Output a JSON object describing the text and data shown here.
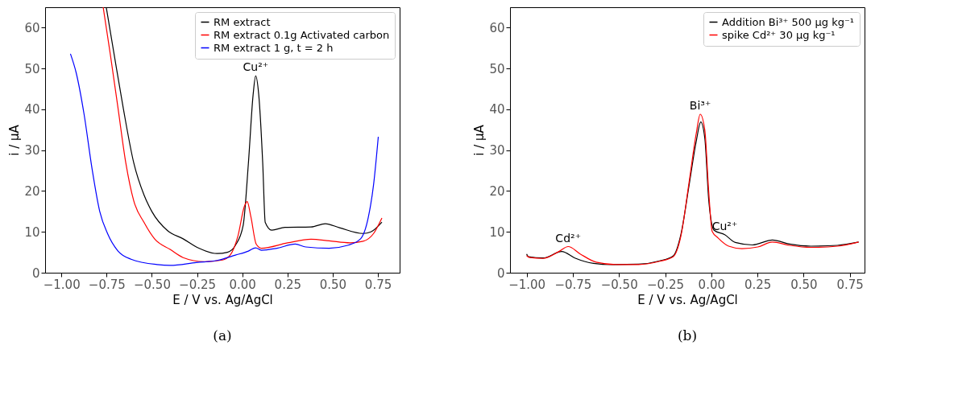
{
  "chart_data": [
    {
      "type": "line",
      "xlabel": "E / V vs. Ag/AgCl",
      "ylabel": "i / μA",
      "xlim": [
        -1.09,
        0.87
      ],
      "ylim": [
        0,
        65
      ],
      "xticks": [
        {
          "value": -1.0,
          "label": "−1.00"
        },
        {
          "value": -0.75,
          "label": "−0.75"
        },
        {
          "value": -0.5,
          "label": "−0.50"
        },
        {
          "value": -0.25,
          "label": "−0.25"
        },
        {
          "value": 0,
          "label": "0.00"
        },
        {
          "value": 0.25,
          "label": "0.25"
        },
        {
          "value": 0.5,
          "label": "0.50"
        },
        {
          "value": 0.75,
          "label": "0.75"
        }
      ],
      "yticks": [
        0,
        10,
        20,
        30,
        40,
        50,
        60
      ],
      "grid": false,
      "legend": "top right",
      "marker": "none",
      "line_style": "solid",
      "series": [
        {
          "name": "RM extract",
          "color": "#000000",
          "x": [
            -0.752,
            -0.709,
            -0.658,
            -0.6,
            -0.543,
            -0.5,
            -0.413,
            -0.327,
            -0.24,
            -0.139,
            -0.082,
            -0.038,
            0.005,
            0.034,
            0.06,
            0.074,
            0.091,
            0.113,
            0.127,
            0.163,
            0.236,
            0.38,
            0.459,
            0.538,
            0.668,
            0.711,
            0.772
          ],
          "values": [
            65,
            53.6,
            40.3,
            26.9,
            19.0,
            15.0,
            10.3,
            8.3,
            6.0,
            4.7,
            5.0,
            6.7,
            11.6,
            26.9,
            43.6,
            48.2,
            43.6,
            26.9,
            12.3,
            10.4,
            11.1,
            11.2,
            12.0,
            11.0,
            9.6,
            10.0,
            12.4
          ]
        },
        {
          "name": "RM extract 0.1g Activated carbon",
          "color": "#ff0000",
          "x": [
            -0.769,
            -0.73,
            -0.687,
            -0.644,
            -0.6,
            -0.543,
            -0.485,
            -0.399,
            -0.327,
            -0.211,
            -0.11,
            -0.067,
            -0.024,
            0.012,
            0.027,
            0.048,
            0.077,
            0.106,
            0.25,
            0.38,
            0.481,
            0.596,
            0.668,
            0.726,
            0.772
          ],
          "values": [
            65,
            53.6,
            40.3,
            26.9,
            17.6,
            12.3,
            8.3,
            5.7,
            3.7,
            2.7,
            3.1,
            4.3,
            9.0,
            16.3,
            17.4,
            13.6,
            7.0,
            6.0,
            7.3,
            8.2,
            7.8,
            7.3,
            7.7,
            9.6,
            13.4
          ]
        },
        {
          "name": "RM extract 1 g, t = 2 h",
          "color": "#0000ff",
          "x": [
            -0.95,
            -0.918,
            -0.875,
            -0.831,
            -0.788,
            -0.745,
            -0.687,
            -0.615,
            -0.471,
            -0.399,
            -0.254,
            -0.139,
            -0.038,
            0.034,
            0.074,
            0.106,
            0.192,
            0.293,
            0.351,
            0.481,
            0.582,
            0.654,
            0.697,
            0.726,
            0.752
          ],
          "values": [
            53.6,
            48.9,
            38.9,
            25.6,
            15.0,
            9.6,
            5.3,
            3.3,
            2.0,
            1.8,
            2.5,
            3.0,
            4.3,
            5.3,
            6.1,
            5.5,
            6.0,
            7.0,
            6.3,
            6.0,
            6.7,
            8.3,
            13.6,
            21.6,
            33.3
          ]
        }
      ],
      "annotations": [
        {
          "text": "Cu²⁺",
          "x": 0.074,
          "y": 48.2
        },
        "(a)"
      ]
    },
    {
      "type": "line",
      "xlabel": "E / V vs. Ag/AgCl",
      "ylabel": "i / μA",
      "xlim": [
        -1.09,
        0.83
      ],
      "ylim": [
        0,
        65
      ],
      "xticks": [
        {
          "value": -1.0,
          "label": "−1.00"
        },
        {
          "value": -0.75,
          "label": "−0.75"
        },
        {
          "value": -0.5,
          "label": "−0.50"
        },
        {
          "value": -0.25,
          "label": "−0.25"
        },
        {
          "value": 0,
          "label": "0.00"
        },
        {
          "value": 0.25,
          "label": "0.25"
        },
        {
          "value": 0.5,
          "label": "0.50"
        },
        {
          "value": 0.75,
          "label": "0.75"
        }
      ],
      "yticks": [
        0,
        10,
        20,
        30,
        40,
        50,
        60
      ],
      "grid": false,
      "legend": "top right",
      "marker": "none",
      "line_style": "solid",
      "series": [
        {
          "name": "Addition Bi³⁺ 500 μg kg⁻¹",
          "color": "#000000",
          "x": [
            -1.0,
            -0.99,
            -0.911,
            -0.81,
            -0.739,
            -0.638,
            -0.538,
            -0.394,
            -0.279,
            -0.207,
            -0.164,
            -0.121,
            -0.081,
            -0.057,
            -0.035,
            -0.014,
            0.015,
            0.073,
            0.13,
            0.223,
            0.331,
            0.424,
            0.539,
            0.683,
            0.798
          ],
          "values": [
            4.6,
            3.9,
            3.6,
            5.2,
            3.6,
            2.3,
            2.0,
            2.1,
            2.9,
            4.1,
            9.5,
            21.2,
            32.3,
            36.9,
            32.9,
            17.9,
            10.4,
            9.3,
            7.4,
            6.8,
            8.0,
            7.0,
            6.5,
            6.7,
            7.5
          ]
        },
        {
          "name": "spike Cd²⁺ 30 μg kg⁻¹",
          "color": "#ff0000",
          "x": [
            -1.0,
            -0.983,
            -0.911,
            -0.825,
            -0.775,
            -0.71,
            -0.624,
            -0.509,
            -0.394,
            -0.279,
            -0.207,
            -0.164,
            -0.121,
            -0.081,
            -0.06,
            -0.035,
            -0.014,
            0.005,
            0.037,
            0.094,
            0.166,
            0.252,
            0.331,
            0.424,
            0.539,
            0.683,
            0.798
          ],
          "values": [
            4.2,
            3.7,
            3.5,
            5.2,
            6.4,
            4.6,
            2.6,
            2.0,
            2.0,
            2.8,
            3.9,
            9.1,
            21.9,
            34.2,
            38.8,
            34.9,
            19.9,
            10.1,
            8.5,
            6.5,
            5.9,
            6.3,
            7.5,
            6.7,
            6.2,
            6.5,
            7.5
          ]
        }
      ],
      "annotations": [
        {
          "text": "Cd²⁺",
          "x": -0.775,
          "y": 6.4
        },
        {
          "text": "Bi³⁺",
          "x": -0.06,
          "y": 38.8
        },
        {
          "text": "Cu²⁺",
          "x": 0.073,
          "y": 9.3
        },
        "(b)"
      ]
    }
  ]
}
